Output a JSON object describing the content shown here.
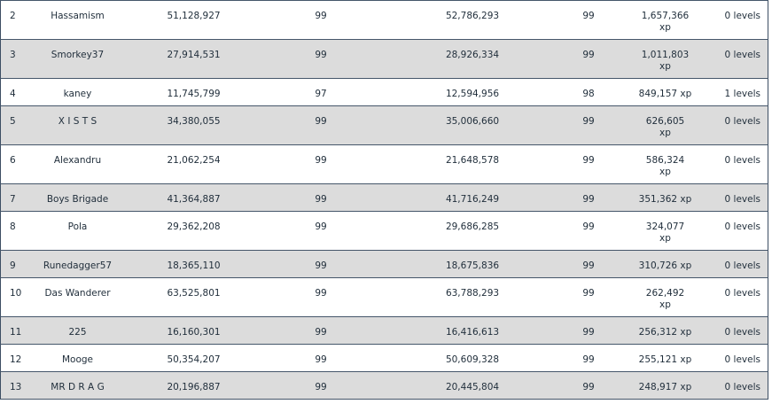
{
  "rows": [
    {
      "rank": "2",
      "name": "Hassamism",
      "level": "99",
      "xp": "51,128,927",
      "level_2": "99",
      "xp_2": "52,786,293",
      "gain": "1,657,366 xp",
      "gain_value": "1,657,366",
      "gain_unit": "xp",
      "diff": "0 levels"
    },
    {
      "rank": "3",
      "name": "Smorkey37",
      "level": "99",
      "xp": "27,914,531",
      "level_2": "99",
      "xp_2": "28,926,334",
      "gain": "1,011,803 xp",
      "gain_value": "1,011,803",
      "gain_unit": "xp",
      "diff": "0 levels"
    },
    {
      "rank": "4",
      "name": "kaney",
      "level": "97",
      "xp": "11,745,799",
      "level_2": "98",
      "xp_2": "12,594,956",
      "gain": "849,157 xp",
      "gain_value": "849,157",
      "gain_unit": "xp",
      "diff": "1 levels"
    },
    {
      "rank": "5",
      "name": "X I S T S",
      "level": "99",
      "xp": "34,380,055",
      "level_2": "99",
      "xp_2": "35,006,660",
      "gain": "626,605 xp",
      "gain_value": "626,605",
      "gain_unit": "xp",
      "diff": "0 levels"
    },
    {
      "rank": "6",
      "name": "Alexandru",
      "level": "99",
      "xp": "21,062,254",
      "level_2": "99",
      "xp_2": "21,648,578",
      "gain": "586,324 xp",
      "gain_value": "586,324",
      "gain_unit": "xp",
      "diff": "0 levels"
    },
    {
      "rank": "7",
      "name": "Boys Brigade",
      "level": "99",
      "xp": "41,364,887",
      "level_2": "99",
      "xp_2": "41,716,249",
      "gain": "351,362 xp",
      "gain_value": "351,362",
      "gain_unit": "xp",
      "diff": "0 levels"
    },
    {
      "rank": "8",
      "name": "Pola",
      "level": "99",
      "xp": "29,362,208",
      "level_2": "99",
      "xp_2": "29,686,285",
      "gain": "324,077 xp",
      "gain_value": "324,077",
      "gain_unit": "xp",
      "diff": "0 levels"
    },
    {
      "rank": "9",
      "name": "Runedagger57",
      "level": "99",
      "xp": "18,365,110",
      "level_2": "99",
      "xp_2": "18,675,836",
      "gain": "310,726 xp",
      "gain_value": "310,726",
      "gain_unit": "xp",
      "diff": "0 levels"
    },
    {
      "rank": "10",
      "name": "Das Wanderer",
      "level": "99",
      "xp": "63,525,801",
      "level_2": "99",
      "xp_2": "63,788,293",
      "gain": "262,492 xp",
      "gain_value": "262,492",
      "gain_unit": "xp",
      "diff": "0 levels"
    },
    {
      "rank": "11",
      "name": "225",
      "level": "99",
      "xp": "16,160,301",
      "level_2": "99",
      "xp_2": "16,416,613",
      "gain": "256,312 xp",
      "gain_value": "256,312",
      "gain_unit": "xp",
      "diff": "0 levels"
    },
    {
      "rank": "12",
      "name": "Mooge",
      "level": "99",
      "xp": "50,354,207",
      "level_2": "99",
      "xp_2": "50,609,328",
      "gain": "255,121 xp",
      "gain_value": "255,121",
      "gain_unit": "xp",
      "diff": "0 levels"
    },
    {
      "rank": "13",
      "name": "MR D R A G",
      "level": "99",
      "xp": "20,196,887",
      "level_2": "99",
      "xp_2": "20,445,804",
      "gain": "248,917 xp",
      "gain_value": "248,917",
      "gain_unit": "xp",
      "diff": "0 levels"
    }
  ]
}
